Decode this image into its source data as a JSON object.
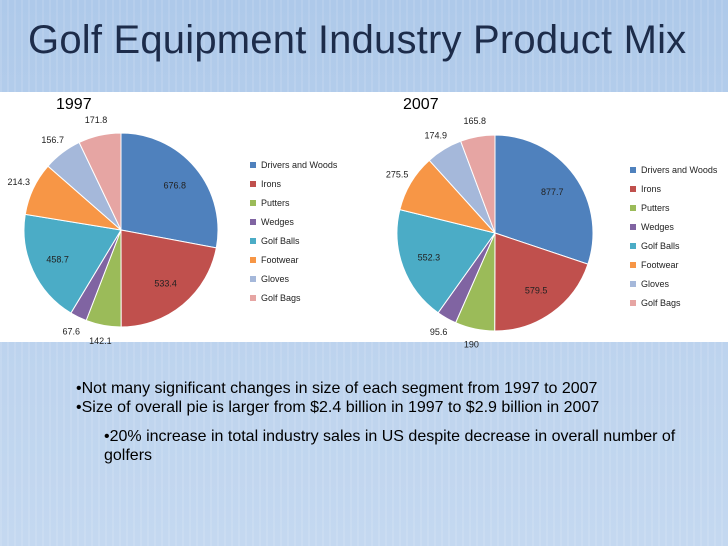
{
  "slide": {
    "title": "Golf Equipment Industry Product Mix",
    "bullets": [
      "•Not many significant changes in size of each segment from 1997 to 2007",
      "•Size of overall pie is larger from $2.4 billion in 1997 to $2.9 billion in 2007"
    ],
    "sub_bullet": "•20% increase in total industry sales in US despite decrease in overall number of golfers"
  },
  "colors": [
    "#4f81bd",
    "#c0504d",
    "#9bbb59",
    "#8064a2",
    "#4bacc6",
    "#f79646",
    "#a5b8da",
    "#e6a5a3"
  ],
  "chart_data": [
    {
      "type": "pie",
      "title": "1997",
      "categories": [
        "Drivers and Woods",
        "Irons",
        "Putters",
        "Wedges",
        "Golf Balls",
        "Footwear",
        "Gloves",
        "Golf Bags"
      ],
      "values": [
        676.8,
        533.4,
        142.1,
        67.6,
        458.7,
        214.3,
        156.7,
        171.8
      ],
      "data_labels": [
        "676.8",
        "533.4",
        "142.1",
        "67.6",
        "458.7",
        "214.3",
        "156.7",
        "171.8"
      ],
      "legend": "right"
    },
    {
      "type": "pie",
      "title": "2007",
      "categories": [
        "Drivers and Woods",
        "Irons",
        "Putters",
        "Wedges",
        "Golf Balls",
        "Footwear",
        "Gloves",
        "Golf Bags"
      ],
      "values": [
        877.7,
        579.5,
        190,
        95.6,
        552.3,
        275.5,
        174.9,
        165.8
      ],
      "data_labels": [
        "877.7",
        "579.5",
        "190",
        "95.6",
        "552.3",
        "275.5",
        "174.9",
        "165.8"
      ],
      "legend": "right"
    }
  ]
}
